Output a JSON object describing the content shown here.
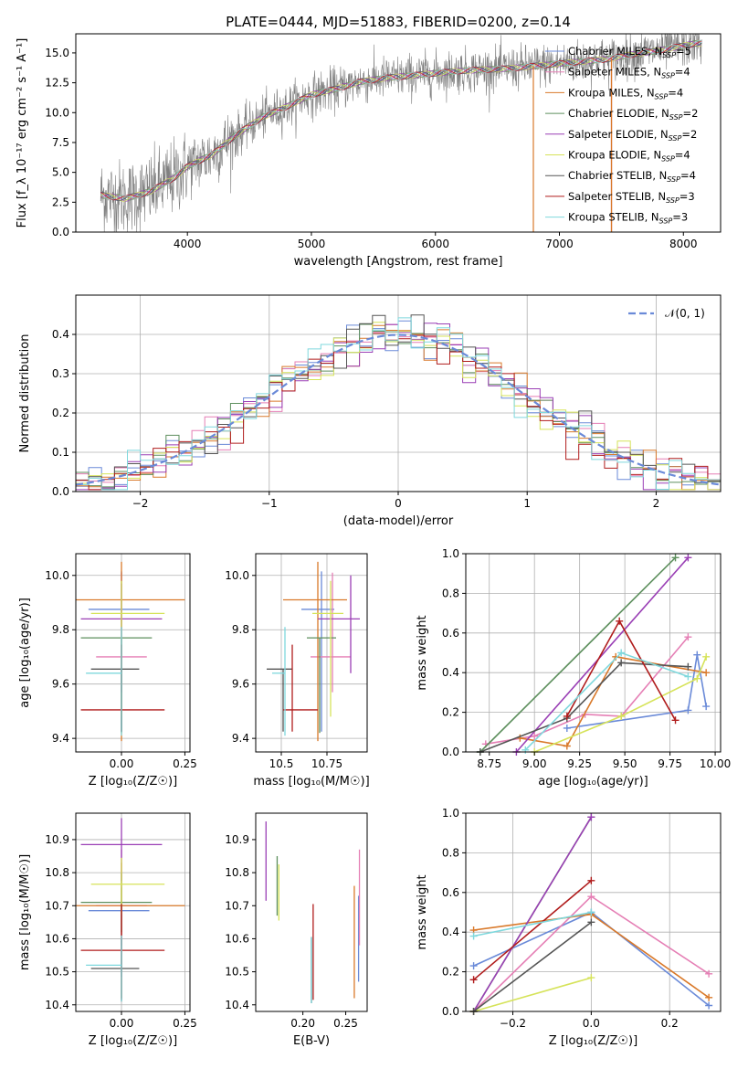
{
  "figure": {
    "title": "PLATE=0444, MJD=51883, FIBERID=0200, z=0.14"
  },
  "colors": {
    "chabrier_miles": "#6a8ad8",
    "salpeter_miles": "#e57fb5",
    "kroupa_miles": "#d9792a",
    "chabrier_elodie": "#5d8f5d",
    "salpeter_elodie": "#9a3fb5",
    "kroupa_elodie": "#d6e35a",
    "chabrier_stelib": "#555555",
    "salpeter_stelib": "#b01c1c",
    "kroupa_stelib": "#7fd8dd",
    "spectrum": "#808080",
    "gauss": "#6a8ad8"
  },
  "chart_data": [
    {
      "id": "spectrum",
      "type": "line",
      "xlabel": "wavelength [Angstrom, rest frame]",
      "ylabel": "Flux [f_λ 10⁻¹⁷ erg cm⁻² s⁻¹ A⁻¹]",
      "xlim": [
        3100,
        8300
      ],
      "ylim": [
        0,
        16.6
      ],
      "xticks": [
        4000,
        5000,
        6000,
        7000,
        8000
      ],
      "yticks": [
        0.0,
        2.5,
        5.0,
        7.5,
        10.0,
        12.5,
        15.0
      ],
      "grid": false,
      "legend": "top-right",
      "series": [
        {
          "name": "Chabrier MILES, N_SSP=5",
          "key": "chabrier_miles"
        },
        {
          "name": "Salpeter MILES, N_SSP=4",
          "key": "salpeter_miles"
        },
        {
          "name": "Kroupa MILES, N_SSP=4",
          "key": "kroupa_miles"
        },
        {
          "name": "Chabrier ELODIE, N_SSP=2",
          "key": "chabrier_elodie"
        },
        {
          "name": "Salpeter ELODIE, N_SSP=2",
          "key": "salpeter_elodie"
        },
        {
          "name": "Kroupa ELODIE, N_SSP=4",
          "key": "kroupa_elodie"
        },
        {
          "name": "Chabrier STELIB, N_SSP=4",
          "key": "chabrier_stelib"
        },
        {
          "name": "Salpeter STELIB, N_SSP=3",
          "key": "salpeter_stelib"
        },
        {
          "name": "Kroupa STELIB, N_SSP=3",
          "key": "kroupa_stelib"
        }
      ],
      "continuum": {
        "x": [
          3300,
          3500,
          3700,
          3900,
          4000,
          4200,
          4400,
          4600,
          4800,
          5000,
          5200,
          5400,
          5600,
          5800,
          6000,
          6200,
          6400,
          6600,
          6800,
          7000,
          7200,
          7400,
          7600,
          7800,
          8000,
          8100
        ],
        "y": [
          3.1,
          2.8,
          3.4,
          4.6,
          5.5,
          6.5,
          8.2,
          9.6,
          10.5,
          11.5,
          12.0,
          12.6,
          12.9,
          13.1,
          13.3,
          13.5,
          13.6,
          13.7,
          13.9,
          14.1,
          14.3,
          14.5,
          14.9,
          15.2,
          15.6,
          15.8
        ]
      },
      "drops": [
        {
          "key": "kroupa_miles",
          "x": 6790
        },
        {
          "key": "salpeter_stelib",
          "x": 7420
        },
        {
          "key": "kroupa_miles",
          "x": 7420
        }
      ]
    },
    {
      "id": "residuals",
      "type": "histogram",
      "xlabel": "(data-model)/error",
      "ylabel": "Normed distribution",
      "xlim": [
        -2.5,
        2.5
      ],
      "ylim": [
        0,
        0.5
      ],
      "xticks": [
        -2,
        -1,
        0,
        1,
        2
      ],
      "yticks": [
        0.0,
        0.1,
        0.2,
        0.3,
        0.4
      ],
      "grid": true,
      "legend": "top-right",
      "gauss_label": "𝒩(0, 1)",
      "bin_width": 0.1,
      "bin_start": -2.5
    },
    {
      "id": "age_Z",
      "type": "errorbar",
      "xlabel": "Z [log₁₀(Z/Z☉)]",
      "ylabel": "age  [log₁₀(age/yr)]",
      "xlim": [
        -0.18,
        0.27
      ],
      "ylim": [
        9.35,
        10.08
      ],
      "xticks": [
        -0.25,
        0.0,
        0.25
      ],
      "xtick_labels": [
        "",
        "0.00",
        "0.25"
      ],
      "yticks": [
        9.4,
        9.6,
        9.8,
        10.0
      ],
      "grid": true,
      "points": [
        {
          "key": "chabrier_miles",
          "x": 0.0,
          "xerr": [
            0.13,
            0.11
          ],
          "y": 9.875,
          "yerr": [
            0.45,
            0.14
          ]
        },
        {
          "key": "salpeter_miles",
          "x": 0.0,
          "xerr": [
            0.1,
            0.1
          ],
          "y": 9.7,
          "yerr": [
            0.13,
            0.31
          ]
        },
        {
          "key": "kroupa_miles",
          "x": 0.0,
          "xerr": [
            0.18,
            0.25
          ],
          "y": 9.91,
          "yerr": [
            0.52,
            0.14
          ]
        },
        {
          "key": "chabrier_elodie",
          "x": 0.0,
          "xerr": [
            0.16,
            0.12
          ],
          "y": 9.77,
          "yerr": [
            0.35,
            0.0
          ]
        },
        {
          "key": "salpeter_elodie",
          "x": 0.0,
          "xerr": [
            0.16,
            0.16
          ],
          "y": 9.84,
          "yerr": [
            0.27,
            0.13
          ]
        },
        {
          "key": "kroupa_elodie",
          "x": 0.0,
          "xerr": [
            0.12,
            0.17
          ],
          "y": 9.86,
          "yerr": [
            0.38,
            0.12
          ]
        },
        {
          "key": "chabrier_stelib",
          "x": 0.0,
          "xerr": [
            0.12,
            0.07
          ],
          "y": 9.655,
          "yerr": [
            0.23,
            0.0
          ]
        },
        {
          "key": "salpeter_stelib",
          "x": 0.0,
          "xerr": [
            0.16,
            0.17
          ],
          "y": 9.505,
          "yerr": [
            0.08,
            0.24
          ]
        },
        {
          "key": "kroupa_stelib",
          "x": 0.0,
          "xerr": [
            0.14,
            0.0
          ],
          "y": 9.64,
          "yerr": [
            0.23,
            0.17
          ]
        }
      ]
    },
    {
      "id": "age_mass",
      "type": "errorbar",
      "xlabel": "mass [log₁₀(M/M☉)]",
      "ylabel": "",
      "xlim": [
        10.36,
        10.97
      ],
      "ylim": [
        9.35,
        10.08
      ],
      "xticks": [
        10.5,
        10.75
      ],
      "yticks": [
        9.4,
        9.6,
        9.8,
        10.0
      ],
      "grid": true,
      "points": [
        {
          "key": "chabrier_miles",
          "x": 10.72,
          "xerr": [
            0.11,
            0.07
          ],
          "y": 9.875,
          "yerr": [
            0.45,
            0.14
          ]
        },
        {
          "key": "salpeter_miles",
          "x": 10.78,
          "xerr": [
            0.12,
            0.1
          ],
          "y": 9.7,
          "yerr": [
            0.13,
            0.31
          ]
        },
        {
          "key": "kroupa_miles",
          "x": 10.7,
          "xerr": [
            0.19,
            0.16
          ],
          "y": 9.91,
          "yerr": [
            0.52,
            0.14
          ]
        },
        {
          "key": "chabrier_elodie",
          "x": 10.71,
          "xerr": [
            0.07,
            0.09
          ],
          "y": 9.77,
          "yerr": [
            0.35,
            0.0
          ]
        },
        {
          "key": "salpeter_elodie",
          "x": 10.88,
          "xerr": [
            0.18,
            0.05
          ],
          "y": 9.84,
          "yerr": [
            0.2,
            0.16
          ]
        },
        {
          "key": "kroupa_elodie",
          "x": 10.77,
          "xerr": [
            0.1,
            0.07
          ],
          "y": 9.86,
          "yerr": [
            0.38,
            0.12
          ]
        },
        {
          "key": "chabrier_stelib",
          "x": 10.51,
          "xerr": [
            0.09,
            0.05
          ],
          "y": 9.655,
          "yerr": [
            0.23,
            0.0
          ]
        },
        {
          "key": "salpeter_stelib",
          "x": 10.56,
          "xerr": [
            0.05,
            0.14
          ],
          "y": 9.505,
          "yerr": [
            0.08,
            0.24
          ]
        },
        {
          "key": "kroupa_stelib",
          "x": 10.52,
          "xerr": [
            0.07,
            0.0
          ],
          "y": 9.64,
          "yerr": [
            0.23,
            0.17
          ]
        }
      ]
    },
    {
      "id": "weight_age",
      "type": "line",
      "xlabel": "age  [log₁₀(age/yr)]",
      "ylabel": "mass weight",
      "xlim": [
        8.62,
        10.03
      ],
      "ylim": [
        0,
        1.0
      ],
      "xticks": [
        8.75,
        9.0,
        9.25,
        9.5,
        9.75,
        10.0
      ],
      "xtick_labels": [
        "8.75",
        "9.00",
        "9.25",
        "9.50",
        "9.75",
        "10.00"
      ],
      "yticks": [
        0.0,
        0.2,
        0.4,
        0.6,
        0.8,
        1.0
      ],
      "grid": true,
      "series": [
        {
          "key": "chabrier_miles",
          "x": [
            9.18,
            9.85,
            9.9,
            9.95
          ],
          "y": [
            0.12,
            0.21,
            0.49,
            0.23
          ]
        },
        {
          "key": "salpeter_miles",
          "x": [
            8.73,
            9.0,
            9.28,
            9.48,
            9.85
          ],
          "y": [
            0.04,
            0.08,
            0.19,
            0.18,
            0.58
          ]
        },
        {
          "key": "kroupa_miles",
          "x": [
            8.92,
            9.18,
            9.45,
            9.95
          ],
          "y": [
            0.07,
            0.03,
            0.48,
            0.4
          ]
        },
        {
          "key": "chabrier_elodie",
          "x": [
            8.7,
            9.78
          ],
          "y": [
            0.0,
            0.98
          ]
        },
        {
          "key": "salpeter_elodie",
          "x": [
            8.9,
            9.85
          ],
          "y": [
            0.0,
            0.98
          ]
        },
        {
          "key": "kroupa_elodie",
          "x": [
            9.0,
            9.48,
            9.9,
            9.95
          ],
          "y": [
            0.0,
            0.18,
            0.37,
            0.48
          ]
        },
        {
          "key": "chabrier_stelib",
          "x": [
            8.7,
            9.18,
            9.48,
            9.85
          ],
          "y": [
            0.0,
            0.17,
            0.45,
            0.43
          ]
        },
        {
          "key": "salpeter_stelib",
          "x": [
            9.18,
            9.47,
            9.78
          ],
          "y": [
            0.18,
            0.66,
            0.16
          ]
        },
        {
          "key": "kroupa_stelib",
          "x": [
            8.95,
            9.48,
            9.85
          ],
          "y": [
            0.01,
            0.5,
            0.38
          ]
        }
      ]
    },
    {
      "id": "mass_Z",
      "type": "errorbar",
      "xlabel": "Z [log₁₀(Z/Z☉)]",
      "ylabel": "mass [log₁₀(M/M☉)]",
      "xlim": [
        -0.18,
        0.27
      ],
      "ylim": [
        10.38,
        10.98
      ],
      "xticks": [
        -0.25,
        0.0,
        0.25
      ],
      "xtick_labels": [
        "",
        "0.00",
        "0.25"
      ],
      "yticks": [
        10.4,
        10.5,
        10.6,
        10.7,
        10.8,
        10.9
      ],
      "grid": true,
      "points": [
        {
          "key": "chabrier_miles",
          "x": 0.0,
          "xerr": [
            0.13,
            0.11
          ],
          "y": 10.685,
          "yerr": [
            0.2,
            0.07
          ]
        },
        {
          "key": "salpeter_miles",
          "x": 0.0,
          "xerr": [
            0.1,
            0.1
          ],
          "y": 10.7,
          "yerr": [
            0.12,
            0.17
          ]
        },
        {
          "key": "kroupa_miles",
          "x": 0.0,
          "xerr": [
            0.18,
            0.25
          ],
          "y": 10.7,
          "yerr": [
            0.28,
            0.13
          ]
        },
        {
          "key": "chabrier_elodie",
          "x": 0.0,
          "xerr": [
            0.16,
            0.12
          ],
          "y": 10.71,
          "yerr": [
            0.09,
            0.09
          ]
        },
        {
          "key": "salpeter_elodie",
          "x": 0.0,
          "xerr": [
            0.16,
            0.16
          ],
          "y": 10.885,
          "yerr": [
            0.11,
            0.08
          ]
        },
        {
          "key": "kroupa_elodie",
          "x": 0.0,
          "xerr": [
            0.12,
            0.17
          ],
          "y": 10.765,
          "yerr": [
            0.09,
            0.08
          ]
        },
        {
          "key": "chabrier_stelib",
          "x": 0.0,
          "xerr": [
            0.12,
            0.07
          ],
          "y": 10.51,
          "yerr": [
            0.1,
            0.09
          ]
        },
        {
          "key": "salpeter_stelib",
          "x": 0.0,
          "xerr": [
            0.16,
            0.17
          ],
          "y": 10.565,
          "yerr": [
            0.15,
            0.14
          ]
        },
        {
          "key": "kroupa_stelib",
          "x": 0.0,
          "xerr": [
            0.14,
            0.0
          ],
          "y": 10.52,
          "yerr": [
            0.11,
            0.09
          ]
        }
      ]
    },
    {
      "id": "mass_ebv",
      "type": "errorbar",
      "xlabel": "E(B-V)",
      "ylabel": "",
      "xlim": [
        0.145,
        0.275
      ],
      "ylim": [
        10.38,
        10.98
      ],
      "xticks": [
        0.2,
        0.25
      ],
      "xtick_labels": [
        "0.20",
        "0.25"
      ],
      "yticks": [
        10.4,
        10.5,
        10.6,
        10.7,
        10.8,
        10.9
      ],
      "grid": false,
      "points": [
        {
          "key": "chabrier_miles",
          "x": 0.265,
          "xerr": [
            0,
            0
          ],
          "y": 10.6,
          "yerr": [
            0.13,
            0.13
          ]
        },
        {
          "key": "salpeter_miles",
          "x": 0.266,
          "xerr": [
            0,
            0
          ],
          "y": 10.7,
          "yerr": [
            0.12,
            0.17
          ]
        },
        {
          "key": "kroupa_miles",
          "x": 0.26,
          "xerr": [
            0,
            0
          ],
          "y": 10.59,
          "yerr": [
            0.17,
            0.17
          ]
        },
        {
          "key": "chabrier_elodie",
          "x": 0.17,
          "xerr": [
            0,
            0
          ],
          "y": 10.76,
          "yerr": [
            0.09,
            0.09
          ]
        },
        {
          "key": "salpeter_elodie",
          "x": 0.157,
          "xerr": [
            0,
            0
          ],
          "y": 10.835,
          "yerr": [
            0.12,
            0.12
          ]
        },
        {
          "key": "kroupa_elodie",
          "x": 0.172,
          "xerr": [
            0,
            0
          ],
          "y": 10.745,
          "yerr": [
            0.09,
            0.08
          ]
        },
        {
          "key": "chabrier_stelib",
          "x": 0.21,
          "xerr": [
            0,
            0
          ],
          "y": 10.505,
          "yerr": [
            0.1,
            0.1
          ]
        },
        {
          "key": "salpeter_stelib",
          "x": 0.212,
          "xerr": [
            0,
            0
          ],
          "y": 10.565,
          "yerr": [
            0.15,
            0.14
          ]
        },
        {
          "key": "kroupa_stelib",
          "x": 0.21,
          "xerr": [
            0,
            0
          ],
          "y": 10.505,
          "yerr": [
            0.1,
            0.1
          ]
        }
      ]
    },
    {
      "id": "weight_Z",
      "type": "line",
      "xlabel": "Z [log₁₀(Z/Z☉)]",
      "ylabel": "mass weight",
      "xlim": [
        -0.32,
        0.33
      ],
      "ylim": [
        0,
        1.0
      ],
      "xticks": [
        -0.2,
        0.0,
        0.2
      ],
      "xtick_labels": [
        "−0.2",
        "0.0",
        "0.2"
      ],
      "yticks": [
        0.0,
        0.2,
        0.4,
        0.6,
        0.8,
        1.0
      ],
      "grid": true,
      "series": [
        {
          "key": "chabrier_miles",
          "x": [
            -0.3,
            0.0,
            0.3
          ],
          "y": [
            0.23,
            0.5,
            0.03
          ],
          "extra": [
            [
              0.0,
              0.21
            ],
            [
              0.3,
              0.03
            ]
          ]
        },
        {
          "key": "salpeter_miles",
          "x": [
            -0.3,
            0.0,
            0.3
          ],
          "y": [
            0.0,
            0.58,
            0.19
          ]
        },
        {
          "key": "kroupa_miles",
          "x": [
            -0.3,
            0.0,
            0.3
          ],
          "y": [
            0.41,
            0.49,
            0.07
          ]
        },
        {
          "key": "chabrier_elodie",
          "x": [
            -0.3,
            0.0
          ],
          "y": [
            0.0,
            0.98
          ]
        },
        {
          "key": "salpeter_elodie",
          "x": [
            -0.3,
            0.0
          ],
          "y": [
            0.0,
            0.98
          ]
        },
        {
          "key": "kroupa_elodie",
          "x": [
            -0.3,
            0.0
          ],
          "y": [
            0.0,
            0.17
          ]
        },
        {
          "key": "chabrier_stelib",
          "x": [
            -0.3,
            0.0
          ],
          "y": [
            0.0,
            0.45
          ]
        },
        {
          "key": "salpeter_stelib",
          "x": [
            -0.3,
            0.0
          ],
          "y": [
            0.16,
            0.66
          ]
        },
        {
          "key": "kroupa_stelib",
          "x": [
            -0.3,
            0.0
          ],
          "y": [
            0.38,
            0.5
          ]
        }
      ]
    }
  ]
}
